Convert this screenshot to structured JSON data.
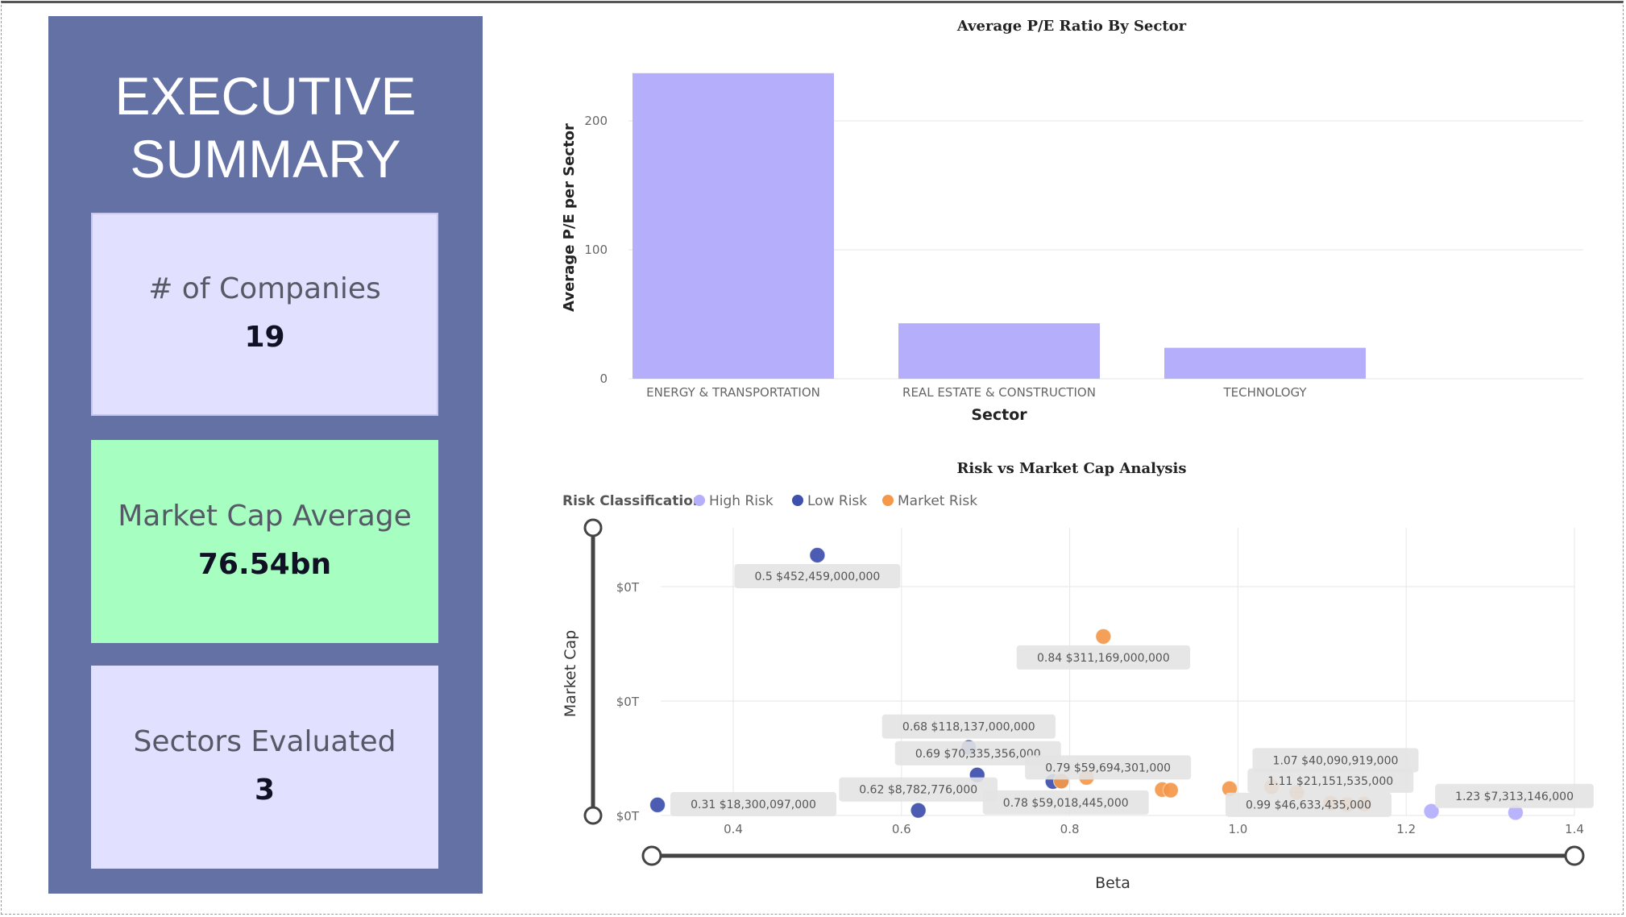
{
  "summary": {
    "title_line1": "EXECUTIVE",
    "title_line2": "SUMMARY",
    "kpis": [
      {
        "label": "# of Companies",
        "value": "19",
        "bg": "#e2e0ff"
      },
      {
        "label": "Market Cap Average",
        "value": "76.54bn",
        "bg": "#a6fec0"
      },
      {
        "label": "Sectors Evaluated",
        "value": "3",
        "bg": "#e2e0ff"
      }
    ],
    "panel_color": "#6471a5"
  },
  "bar_chart": {
    "title": "Average P/E Ratio By Sector",
    "xlabel": "Sector",
    "ylabel": "Average P/E per Sector"
  },
  "scatter_chart": {
    "title": "Risk vs Market Cap Analysis",
    "xlabel": "Beta",
    "ylabel": "Market Cap",
    "legend_title": "Risk Classification"
  },
  "chart_data": [
    {
      "type": "bar",
      "title": "Average P/E Ratio By Sector",
      "categories": [
        "ENERGY & TRANSPORTATION",
        "REAL ESTATE & CONSTRUCTION",
        "TECHNOLOGY"
      ],
      "values": [
        237,
        43,
        24
      ],
      "xlabel": "Sector",
      "ylabel": "Average P/E per Sector",
      "ylim": [
        0,
        250
      ],
      "yticks": [
        0,
        100,
        200
      ],
      "color": "#b4aefb",
      "grid": true
    },
    {
      "type": "scatter",
      "title": "Risk vs Market Cap Analysis",
      "xlabel": "Beta",
      "ylabel": "Market Cap",
      "xlim": [
        0.3,
        1.4
      ],
      "ylim": [
        0,
        500000000000
      ],
      "xticks": [
        "0.4",
        "0.6",
        "0.8",
        "1.0",
        "1.2",
        "1.4"
      ],
      "yticks": [
        "$0T",
        "$0T",
        "$0T"
      ],
      "ytick_values": [
        0,
        200000000000,
        400000000000
      ],
      "legend_title": "Risk Classification",
      "legend_position": "top-left",
      "grid": true,
      "series": [
        {
          "name": "High Risk",
          "color": "#b4aefb",
          "points": [
            {
              "x": 1.23,
              "y": 7313146000,
              "label": "1.23 $7,313,146,000"
            },
            {
              "x": 1.33,
              "y": 5000000000
            }
          ]
        },
        {
          "name": "Low Risk",
          "color": "#3e4fad",
          "points": [
            {
              "x": 0.5,
              "y": 452459000000,
              "label": "0.5 $452,459,000,000"
            },
            {
              "x": 0.31,
              "y": 18300097000,
              "label": "0.31 $18,300,097,000"
            },
            {
              "x": 0.62,
              "y": 8782776000,
              "label": "0.62 $8,782,776,000"
            },
            {
              "x": 0.68,
              "y": 118137000000,
              "label": "0.68 $118,137,000,000"
            },
            {
              "x": 0.69,
              "y": 70335356000,
              "label": "0.69 $70,335,356,000"
            },
            {
              "x": 0.78,
              "y": 59018445000,
              "label": "0.78 $59,018,445,000"
            },
            {
              "x": 0.79,
              "y": 60000000000
            }
          ]
        },
        {
          "name": "Market Risk",
          "color": "#f5984a",
          "points": [
            {
              "x": 0.84,
              "y": 311169000000,
              "label": "0.84 $311,169,000,000"
            },
            {
              "x": 0.82,
              "y": 66000000000
            },
            {
              "x": 0.79,
              "y": 59694301000,
              "label": "0.79 $59,694,301,000"
            },
            {
              "x": 0.91,
              "y": 45000000000
            },
            {
              "x": 0.92,
              "y": 44000000000
            },
            {
              "x": 0.99,
              "y": 46633435000,
              "label": "0.99 $46,633,435,000"
            },
            {
              "x": 1.04,
              "y": 50000000000
            },
            {
              "x": 1.07,
              "y": 40090919000,
              "label": "1.07 $40,090,919,000"
            },
            {
              "x": 1.11,
              "y": 21151535000,
              "label": "1.11 $21,151,535,000"
            },
            {
              "x": 1.13,
              "y": 19000000000
            },
            {
              "x": 1.15,
              "y": 20000000000
            }
          ]
        }
      ]
    }
  ]
}
